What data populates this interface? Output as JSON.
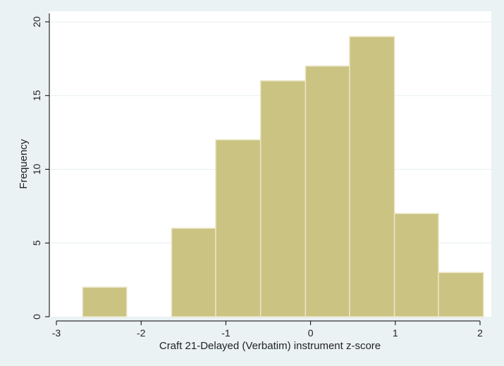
{
  "chart_data": {
    "type": "bar",
    "subtype": "histogram",
    "xlabel": "Craft 21-Delayed (Verbatim) instrument z-score",
    "ylabel": "Frequency",
    "xlim": [
      -3.05,
      2.05
    ],
    "ylim": [
      0,
      20
    ],
    "x_ticks": [
      -3,
      -2,
      -1,
      0,
      1,
      2
    ],
    "x_tick_labels": [
      "-3",
      "-2",
      "-1",
      "0",
      "1",
      "2"
    ],
    "y_ticks": [
      0,
      5,
      10,
      15,
      20
    ],
    "y_tick_labels": [
      "0",
      "5",
      "10",
      "15",
      "20"
    ],
    "bins": [
      {
        "start": -2.69,
        "end": -2.17,
        "count": 2
      },
      {
        "start": -2.17,
        "end": -1.64,
        "count": 0
      },
      {
        "start": -1.64,
        "end": -1.12,
        "count": 6
      },
      {
        "start": -1.12,
        "end": -0.59,
        "count": 12
      },
      {
        "start": -0.59,
        "end": -0.06,
        "count": 16
      },
      {
        "start": -0.06,
        "end": 0.46,
        "count": 17
      },
      {
        "start": 0.46,
        "end": 0.99,
        "count": 19
      },
      {
        "start": 0.99,
        "end": 1.51,
        "count": 7
      },
      {
        "start": 1.51,
        "end": 2.04,
        "count": 3
      }
    ],
    "grid": "horizontal",
    "colors": {
      "bar_fill": "#cbc382",
      "bar_stroke": "#ebe6c6",
      "plot_bg": "#ffffff",
      "outer_bg": "#eaf2f3",
      "grid": "#e6eeee",
      "axis": "#000000"
    }
  }
}
